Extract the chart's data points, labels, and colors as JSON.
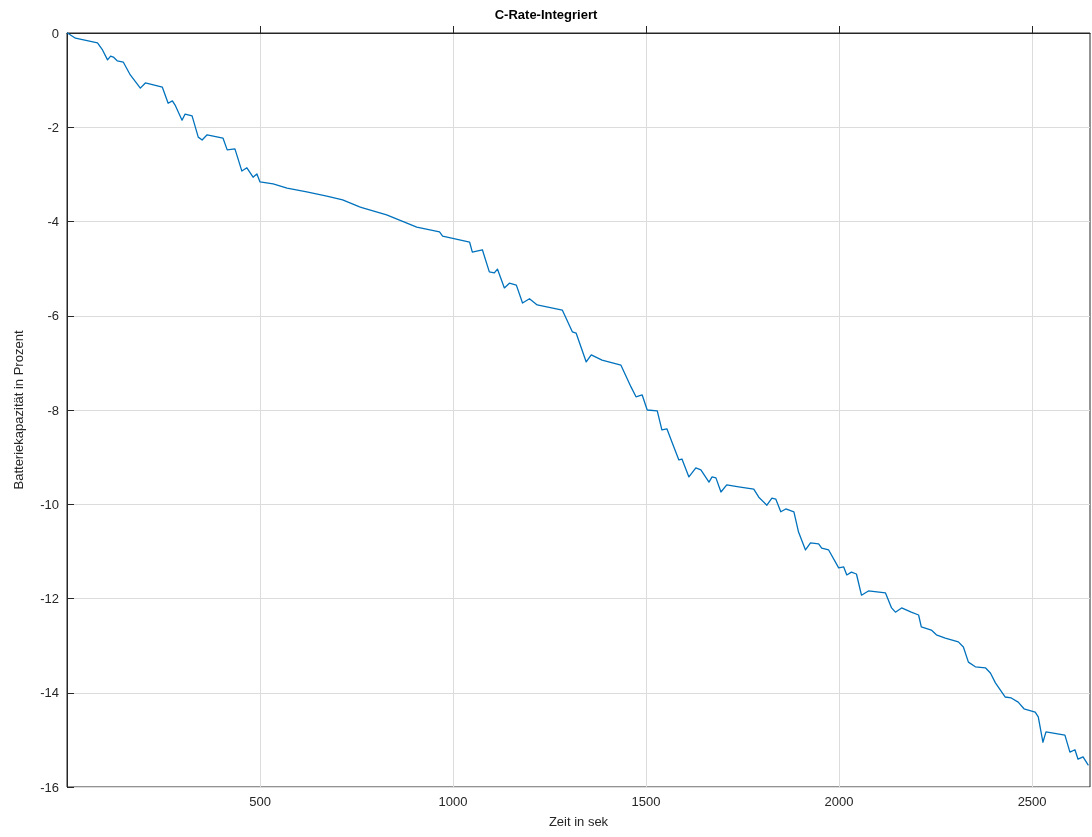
{
  "chart_data": {
    "type": "line",
    "title": "C-Rate-Integriert",
    "xlabel": "Zeit in sek",
    "ylabel": "Batteriekapazität in Prozent",
    "xlim": [
      0,
      2650
    ],
    "xticks": [
      500,
      1000,
      1500,
      2000,
      2500
    ],
    "ylim": [
      -16,
      0
    ],
    "yticks": [
      -16,
      -14,
      -12,
      -10,
      -8,
      -6,
      -4,
      -2,
      0
    ],
    "grid": true,
    "marker": "none",
    "line_style": "solid",
    "series": [
      {
        "color": "#0072bd",
        "x": [
          1,
          22,
          79,
          92,
          105,
          113,
          120,
          130,
          146,
          164,
          190,
          203,
          247,
          262,
          273,
          280,
          298,
          306,
          324,
          340,
          350,
          363,
          404,
          415,
          435,
          453,
          466,
          482,
          492,
          500,
          534,
          570,
          621,
          673,
          714,
          758,
          766,
          828,
          906,
          965,
          973,
          1043,
          1050,
          1076,
          1094,
          1107,
          1115,
          1133,
          1146,
          1164,
          1180,
          1198,
          1218,
          1283,
          1309,
          1319,
          1345,
          1358,
          1386,
          1435,
          1461,
          1474,
          1490,
          1503,
          1529,
          1541,
          1554,
          1567,
          1585,
          1593,
          1611,
          1629,
          1642,
          1663,
          1671,
          1681,
          1694,
          1709,
          1740,
          1779,
          1792,
          1813,
          1826,
          1836,
          1849,
          1862,
          1883,
          1895,
          1913,
          1926,
          1947,
          1955,
          1973,
          1999,
          2012,
          2020,
          2032,
          2045,
          2058,
          2076,
          2120,
          2136,
          2146,
          2162,
          2187,
          2206,
          2213,
          2239,
          2252,
          2275,
          2309,
          2322,
          2335,
          2353,
          2379,
          2392,
          2405,
          2430,
          2446,
          2464,
          2479,
          2508,
          2516,
          2528,
          2536,
          2585,
          2598,
          2611,
          2619,
          2632,
          2645
        ],
        "values": [
          0,
          -0.11,
          -0.21,
          -0.36,
          -0.57,
          -0.49,
          -0.51,
          -0.59,
          -0.62,
          -0.89,
          -1.17,
          -1.06,
          -1.15,
          -1.49,
          -1.44,
          -1.53,
          -1.85,
          -1.72,
          -1.76,
          -2.21,
          -2.27,
          -2.16,
          -2.23,
          -2.48,
          -2.46,
          -2.93,
          -2.86,
          -3.06,
          -2.99,
          -3.16,
          -3.2,
          -3.29,
          -3.37,
          -3.46,
          -3.54,
          -3.69,
          -3.71,
          -3.86,
          -4.12,
          -4.22,
          -4.31,
          -4.44,
          -4.65,
          -4.6,
          -5.07,
          -5.09,
          -5.01,
          -5.41,
          -5.31,
          -5.35,
          -5.73,
          -5.64,
          -5.77,
          -5.88,
          -6.34,
          -6.37,
          -6.98,
          -6.83,
          -6.94,
          -7.05,
          -7.51,
          -7.72,
          -7.68,
          -8,
          -8.02,
          -8.42,
          -8.4,
          -8.68,
          -9.06,
          -9.04,
          -9.42,
          -9.23,
          -9.27,
          -9.53,
          -9.42,
          -9.44,
          -9.74,
          -9.59,
          -9.63,
          -9.68,
          -9.85,
          -10.02,
          -9.87,
          -9.89,
          -10.16,
          -10.1,
          -10.16,
          -10.59,
          -10.97,
          -10.82,
          -10.84,
          -10.93,
          -10.97,
          -11.35,
          -11.33,
          -11.5,
          -11.44,
          -11.48,
          -11.93,
          -11.84,
          -11.88,
          -12.2,
          -12.29,
          -12.2,
          -12.29,
          -12.35,
          -12.6,
          -12.67,
          -12.77,
          -12.84,
          -12.92,
          -13.03,
          -13.35,
          -13.45,
          -13.47,
          -13.58,
          -13.79,
          -14.09,
          -14.11,
          -14.2,
          -14.34,
          -14.41,
          -14.51,
          -15.05,
          -14.83,
          -14.9,
          -15.26,
          -15.21,
          -15.41,
          -15.36,
          -15.53
        ]
      }
    ]
  }
}
